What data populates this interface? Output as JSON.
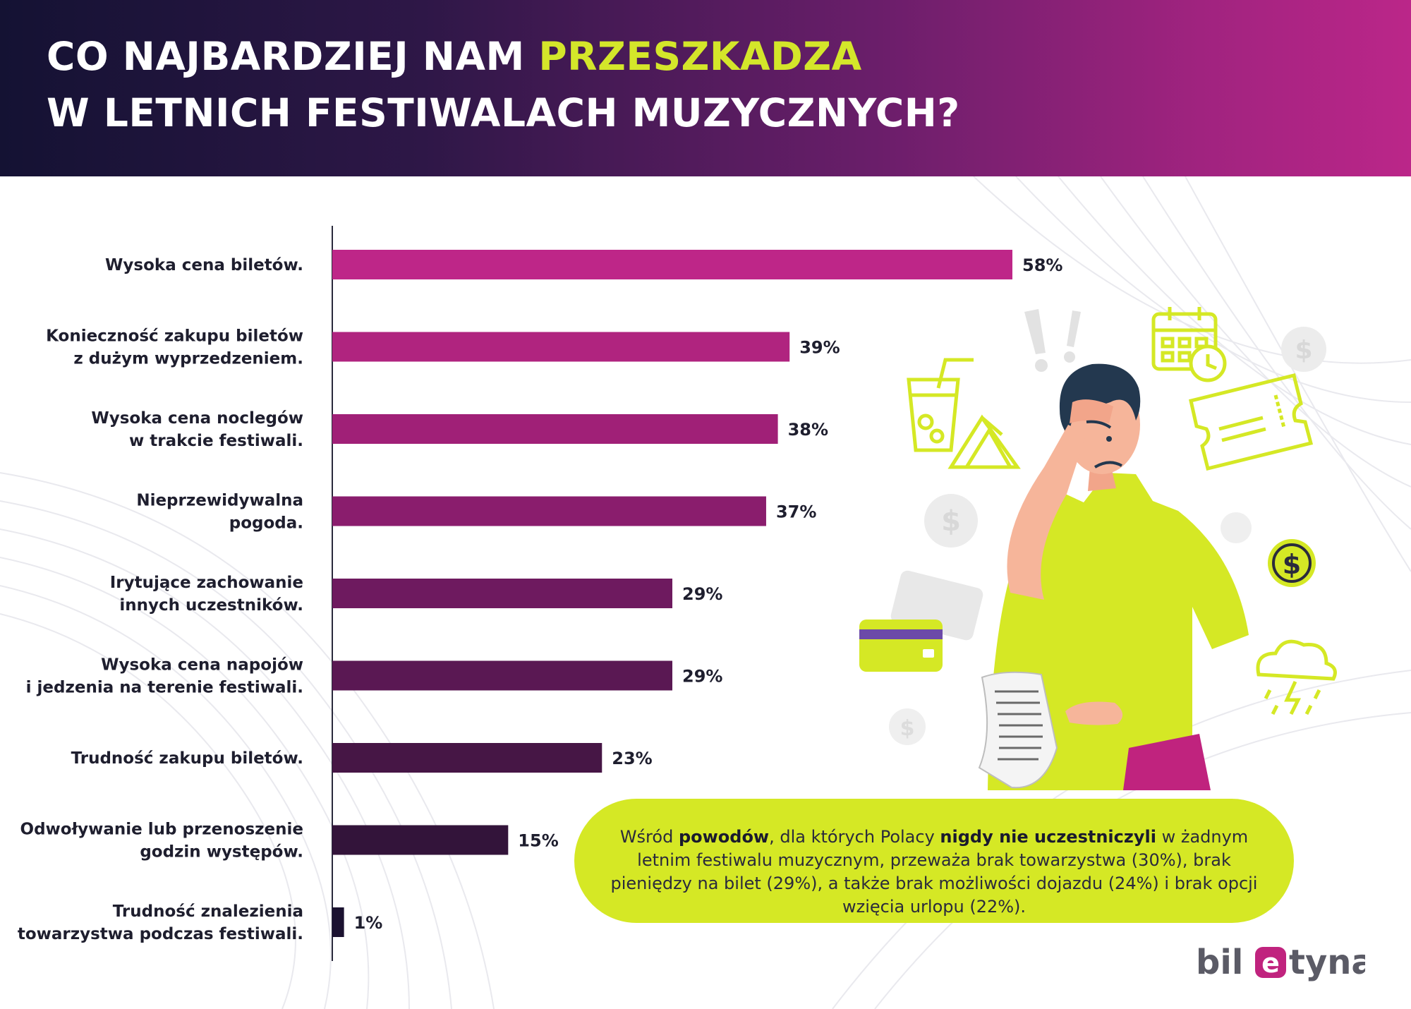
{
  "header": {
    "title_part1": "CO NAJBARDZIEJ NAM ",
    "title_highlight": "PRZESZKADZA",
    "title_line2": "W LETNICH FESTIWALACH MUZYCZNYCH?",
    "highlight_color": "#d4e62a"
  },
  "chart_data": {
    "type": "bar",
    "orientation": "horizontal",
    "title": "CO NAJBARDZIEJ NAM PRZESZKADZA W LETNICH FESTIWALACH MUZYCZNYCH?",
    "xlabel": "",
    "ylabel": "",
    "unit": "%",
    "xlim": [
      0,
      58
    ],
    "grid": false,
    "categories": [
      "Wysoka cena biletów.",
      "Konieczność zakupu biletów z dużym wyprzedzeniem.",
      "Wysoka cena noclegów w trakcie festiwali.",
      "Nieprzewidywalna pogoda.",
      "Irytujące zachowanie innych uczestników.",
      "Wysoka cena napojów i jedzenia na terenie festiwali.",
      "Trudność zakupu biletów.",
      "Odwoływanie lub przenoszenie godzin występów.",
      "Trudność znalezienia towarzystwa podczas festiwali."
    ],
    "category_lines": [
      [
        "Wysoka cena biletów."
      ],
      [
        "Konieczność zakupu biletów",
        "z dużym wyprzedzeniem."
      ],
      [
        "Wysoka cena noclegów",
        "w trakcie festiwali."
      ],
      [
        "Nieprzewidywalna",
        "pogoda."
      ],
      [
        "Irytujące zachowanie",
        "innych uczestników."
      ],
      [
        "Wysoka cena napojów",
        "i jedzenia na terenie festiwali."
      ],
      [
        "Trudność zakupu biletów."
      ],
      [
        "Odwoływanie lub przenoszenie",
        "godzin występów."
      ],
      [
        "Trudność znalezienia",
        "towarzystwa podczas festiwali."
      ]
    ],
    "values": [
      58,
      39,
      38,
      37,
      29,
      29,
      23,
      15,
      1
    ],
    "value_labels": [
      "58%",
      "39%",
      "38%",
      "37%",
      "29%",
      "29%",
      "23%",
      "15%",
      "1%"
    ],
    "bar_colors": [
      "#be2688",
      "#b0247f",
      "#a02077",
      "#8a1d6d",
      "#6e1a5f",
      "#5a1853",
      "#461645",
      "#33143a",
      "#1b1230"
    ]
  },
  "callout": {
    "t1": "Wśród ",
    "b1": "powodów",
    "t2": ", dla których Polacy ",
    "b2": "nigdy nie uczestniczyli",
    "t3": " w żadnym letnim festiwalu muzycznym, przeważa brak towarzystwa (30%), brak pieniędzy na bilet (29%), a także brak możliwości dojazdu (24%) i brak opcji wzięcia urlopu (22%)."
  },
  "logo": {
    "left": "bil",
    "right": "tyna",
    "mark_glyph": "e"
  },
  "illustration": {
    "icons": [
      "exclamation-icon",
      "calendar-clock-icon",
      "drink-icon",
      "tent-icon",
      "ticket-icon",
      "dollar-coin-icon",
      "credit-card-icon",
      "storm-cloud-icon"
    ]
  }
}
